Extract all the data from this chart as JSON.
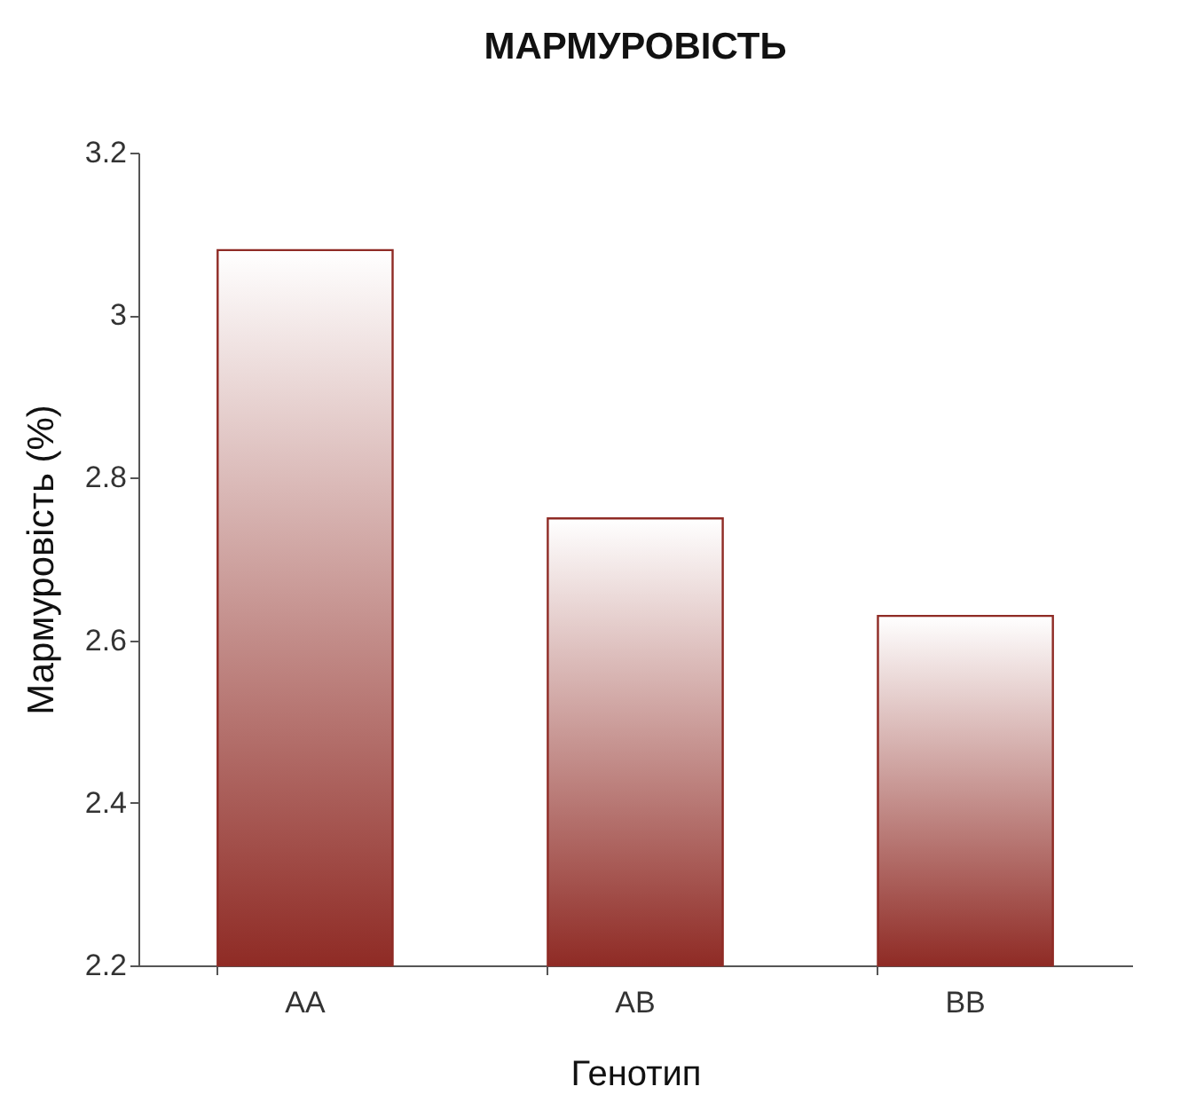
{
  "chart_data": {
    "type": "bar",
    "title": "МАРМУРОВІСТЬ",
    "xlabel": "Генотип",
    "ylabel": "Мармуровість (%)",
    "categories": [
      "AA",
      "AB",
      "BB"
    ],
    "values": [
      3.08,
      2.75,
      2.63
    ],
    "color": "#8f2b25",
    "ylim": [
      2.2,
      3.2
    ],
    "yticks": [
      2.2,
      2.4,
      2.6,
      2.8,
      3,
      3.2
    ],
    "grid": false
  }
}
